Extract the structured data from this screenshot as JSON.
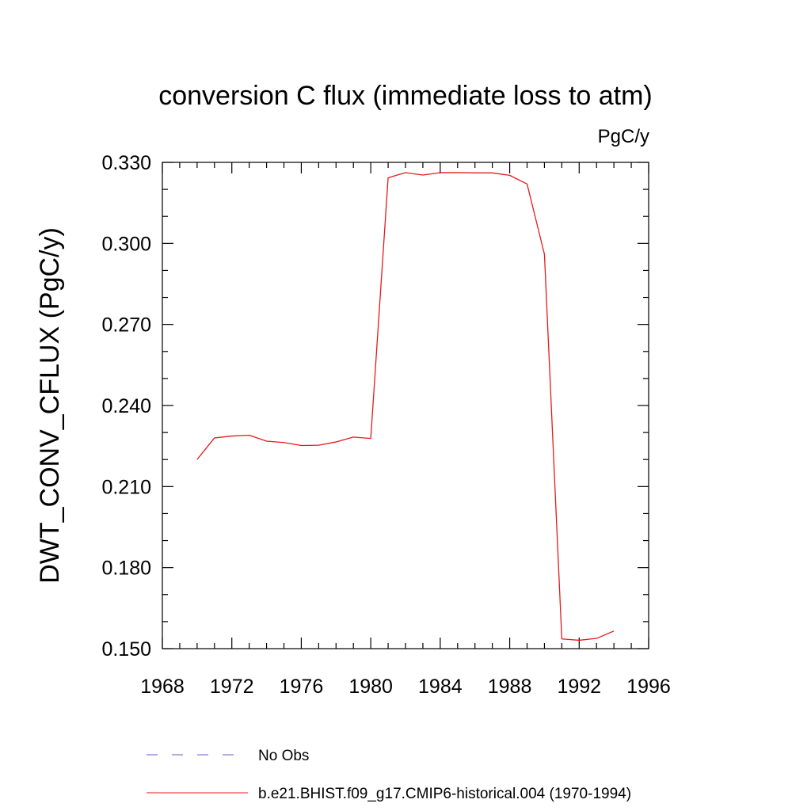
{
  "chart_data": {
    "type": "line",
    "title": "conversion C flux (immediate loss to atm)",
    "units_label": "PgC/y",
    "xlabel": "",
    "ylabel": "DWT_CONV_CFLUX  (PgC/y)",
    "xlim": [
      1968,
      1996
    ],
    "ylim": [
      0.15,
      0.33
    ],
    "x_ticks": [
      1968,
      1972,
      1976,
      1980,
      1984,
      1988,
      1992,
      1996
    ],
    "x_tick_labels": [
      "1968",
      "1972",
      "1976",
      "1980",
      "1984",
      "1988",
      "1992",
      "1996"
    ],
    "y_ticks": [
      0.15,
      0.18,
      0.21,
      0.24,
      0.27,
      0.3,
      0.33
    ],
    "y_tick_labels": [
      "0.150",
      "0.180",
      "0.210",
      "0.240",
      "0.270",
      "0.300",
      "0.330"
    ],
    "x_minor_step": 1,
    "y_minor_step": 0.01,
    "grid": false,
    "legend_position": "bottom",
    "legend": [
      {
        "label": "No Obs",
        "color": "#6a5acd",
        "dash": "dashed"
      },
      {
        "label": "b.e21.BHIST.f09_g17.CMIP6-historical.004 (1970-1994)",
        "color": "#e41a1c",
        "dash": "solid"
      }
    ],
    "series": [
      {
        "name": "b.e21.BHIST.f09_g17.CMIP6-historical.004 (1970-1994)",
        "color": "#e41a1c",
        "x": [
          1970,
          1971,
          1972,
          1973,
          1974,
          1975,
          1976,
          1977,
          1978,
          1979,
          1980,
          1981,
          1982,
          1983,
          1984,
          1985,
          1986,
          1987,
          1988,
          1989,
          1990,
          1991,
          1992,
          1993,
          1994
        ],
        "y": [
          0.22,
          0.228,
          0.2287,
          0.229,
          0.2268,
          0.2263,
          0.2252,
          0.2253,
          0.2265,
          0.2283,
          0.2278,
          0.3243,
          0.3262,
          0.3253,
          0.3262,
          0.3262,
          0.3261,
          0.3261,
          0.3252,
          0.322,
          0.296,
          0.1536,
          0.1531,
          0.1538,
          0.1565
        ]
      }
    ]
  }
}
